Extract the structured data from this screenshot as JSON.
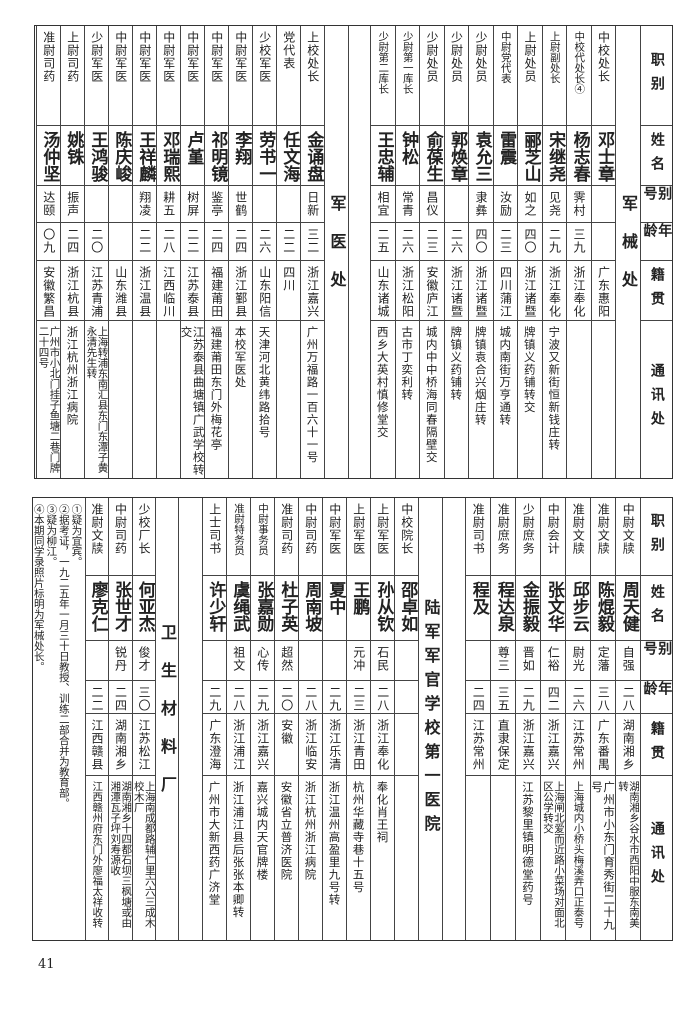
{
  "headers": [
    "职别",
    "姓名",
    "别号",
    "年龄",
    "籍贯",
    "通讯处"
  ],
  "top": {
    "sections": [
      {
        "title": "军械处",
        "rows": [
          {
            "rank": "中校处长",
            "name": "邓士章",
            "alias": "",
            "age": "",
            "origin": "广东惠阳",
            "address": ""
          },
          {
            "rank": "中校代处长④",
            "name": "杨志春",
            "alias": "霁村",
            "age": "三九",
            "origin": "浙江奉化",
            "address": ""
          },
          {
            "rank": "上尉副处长",
            "name": "宋继尧",
            "alias": "见尧",
            "age": "二九",
            "origin": "浙江奉化",
            "address": "宁波又新街恒新钱庄转"
          },
          {
            "rank": "上尉处员",
            "name": "郦芝山",
            "alias": "如之",
            "age": "四〇",
            "origin": "浙江诸暨",
            "address": "牌镇义药铺转交"
          },
          {
            "rank": "中尉党代表",
            "name": "雷震",
            "alias": "汝励",
            "age": "二三",
            "origin": "四川蒲江",
            "address": "城内南街万亨通转"
          },
          {
            "rank": "少尉处员",
            "name": "袁允三",
            "alias": "隶彝",
            "age": "四〇",
            "origin": "浙江诸暨",
            "address": "牌镇袁合兴烟庄转"
          },
          {
            "rank": "少尉处员",
            "name": "郭焕章",
            "alias": "",
            "age": "二六",
            "origin": "浙江诸暨",
            "address": "牌镇义药铺转"
          },
          {
            "rank": "少尉处员",
            "name": "俞葆生",
            "alias": "昌仪",
            "age": "二三",
            "origin": "安徽庐江",
            "address": "城内中中桥海同春隔壁交"
          },
          {
            "rank": "少尉第一库长",
            "name": "钟松",
            "alias": "常青",
            "age": "二六",
            "origin": "浙江松阳",
            "address": "古市丁奕利转"
          },
          {
            "rank": "少尉第二库长",
            "name": "王忠辅",
            "alias": "相宜",
            "age": "二五",
            "origin": "山东诸城",
            "address": "西乡大英村慎修堂交"
          }
        ]
      },
      {
        "title": "军医处",
        "rows": [
          {
            "rank": "上校处长",
            "name": "金诵盘",
            "alias": "日新",
            "age": "三二",
            "origin": "浙江嘉兴",
            "address": "广州万福路一百六十一号"
          },
          {
            "rank": "党代表",
            "name": "任文海",
            "alias": "",
            "age": "二二",
            "origin": "四川",
            "address": ""
          },
          {
            "rank": "少校军医",
            "name": "劳书一",
            "alias": "",
            "age": "二六",
            "origin": "山东阳信",
            "address": "天津河北黄纬路拾号"
          },
          {
            "rank": "中尉军医",
            "name": "李翔",
            "alias": "世鹤",
            "age": "二四",
            "origin": "浙江鄞县",
            "address": "本校军医处"
          },
          {
            "rank": "中尉军医",
            "name": "祁明镜",
            "alias": "鉴亭",
            "age": "二四",
            "origin": "福建莆田",
            "address": "福建莆田东门外梅花亭"
          },
          {
            "rank": "中尉军医",
            "name": "卢堇",
            "alias": "树屏",
            "age": "二二",
            "origin": "江苏泰县",
            "address": "江苏泰县曲塘镇广武学校转交"
          },
          {
            "rank": "中尉军医",
            "name": "邓瑞熙",
            "alias": "耕五",
            "age": "二八",
            "origin": "江西临川",
            "address": ""
          },
          {
            "rank": "中尉军医",
            "name": "王祥麟",
            "alias": "翔凌",
            "age": "二二",
            "origin": "浙江温县",
            "address": ""
          },
          {
            "rank": "中尉军医",
            "name": "陈庆峻",
            "alias": "",
            "age": "",
            "origin": "山东潍县",
            "address": ""
          },
          {
            "rank": "少尉军医",
            "name": "王鸿骏",
            "alias": "",
            "age": "二〇",
            "origin": "江苏青浦",
            "address": "上海转浦东南汇县东门东潭子黄永清先生转"
          },
          {
            "rank": "上尉司药",
            "name": "姚铢",
            "alias": "振声",
            "age": "二四",
            "origin": "浙江杭县",
            "address": "浙江杭州浙江病院"
          },
          {
            "rank": "准尉司药",
            "name": "汤仲坚",
            "alias": "达颐",
            "age": "〇九",
            "origin": "安徽繁昌",
            "address": "广州市小北门挂子鱼塘二巷门牌二十四号"
          }
        ]
      }
    ]
  },
  "bottom": {
    "pre_rows": [
      {
        "rank": "中尉文牍",
        "name": "周天健",
        "alias": "自强",
        "age": "二八",
        "origin": "湖南湘乡",
        "address": "湖南湘乡谷水市西阳中服东南美转"
      },
      {
        "rank": "准尉文牍",
        "name": "陈焜毅",
        "alias": "定藩",
        "age": "三八",
        "origin": "广东番禺",
        "address": "广州市小东门育秀街二十九号"
      },
      {
        "rank": "准尉文牍",
        "name": "邱步云",
        "alias": "尉光",
        "age": "二六",
        "origin": "江苏常州",
        "address": "上海城内小桥头梅溪弄口正泰号"
      },
      {
        "rank": "中尉会计",
        "name": "张文华",
        "alias": "仁裕",
        "age": "四二",
        "origin": "浙江嘉兴",
        "address": "上海闸北爱而近路小菜场对面北区公学转交"
      },
      {
        "rank": "少尉庶务",
        "name": "金振毅",
        "alias": "晋如",
        "age": "二九",
        "origin": "浙江嘉兴",
        "address": "江苏黎里镇明德堂药号"
      },
      {
        "rank": "准尉庶务",
        "name": "程达泉",
        "alias": "尊三",
        "age": "三五",
        "origin": "直隶保定",
        "address": ""
      },
      {
        "rank": "准尉司书",
        "name": "程及",
        "alias": "",
        "age": "二四",
        "origin": "江苏常州",
        "address": ""
      }
    ],
    "sections": [
      {
        "title": "陆军军官学校第一医院",
        "rows": [
          {
            "rank": "中校院长",
            "name": "邵卓如",
            "alias": "",
            "age": "",
            "origin": "",
            "address": ""
          },
          {
            "rank": "上尉军医",
            "name": "孙从钦",
            "alias": "石民",
            "age": "二八",
            "origin": "浙江奉化",
            "address": "奉化肖王祠"
          },
          {
            "rank": "上尉军医",
            "name": "王鹏",
            "alias": "元冲",
            "age": "二三",
            "origin": "浙江青田",
            "address": "杭州华藏寺巷十五号"
          },
          {
            "rank": "中尉军医",
            "name": "夏中",
            "alias": "",
            "age": "二九",
            "origin": "浙江乐清",
            "address": "浙江温州高盈里九号转"
          },
          {
            "rank": "中尉司药",
            "name": "周南坡",
            "alias": "",
            "age": "二八",
            "origin": "浙江临安",
            "address": "浙江杭州浙江病院"
          },
          {
            "rank": "准尉司药",
            "name": "杜子英",
            "alias": "超然",
            "age": "二〇",
            "origin": "安徽",
            "address": "安徽省立普济医院"
          },
          {
            "rank": "中尉事务员",
            "name": "张嘉勋",
            "alias": "心传",
            "age": "二九",
            "origin": "浙江嘉兴",
            "address": "嘉兴城内天官牌楼"
          },
          {
            "rank": "准尉特务员",
            "name": "虞绳武",
            "alias": "祖文",
            "age": "二八",
            "origin": "浙江浦江",
            "address": "浙江浦江县后张张本卿转"
          },
          {
            "rank": "上士司书",
            "name": "许少轩",
            "alias": "",
            "age": "二九",
            "origin": "广东澄海",
            "address": "广州市大新西药广济堂"
          }
        ]
      },
      {
        "title": "卫生材料厂",
        "rows": [
          {
            "rank": "少校厂长",
            "name": "何亚杰",
            "alias": "俊才",
            "age": "三〇",
            "origin": "江苏松江",
            "address": "上海南成都路辅仁里六六三成木校木厂"
          },
          {
            "rank": "中尉司药",
            "name": "张世才",
            "alias": "锐丹",
            "age": "二四",
            "origin": "湖南湘乡",
            "address": "湖南湘乡十四都石坝三枫塘或由湘潭瓦子坪刘寿源收"
          },
          {
            "rank": "准尉文牍",
            "name": "廖克仁",
            "alias": "",
            "age": "二二",
            "origin": "江西赣县",
            "address": "江西赣州府东门外廖福太祥收转"
          }
        ]
      }
    ],
    "notes": [
      "①疑为宜宾。",
      "②据考证，一九二五年一月三十日教授、训练二部合并为教育部。",
      "③疑为柳江。",
      "④本期同学录照片标明为军械处长。"
    ]
  },
  "page_number": "41"
}
